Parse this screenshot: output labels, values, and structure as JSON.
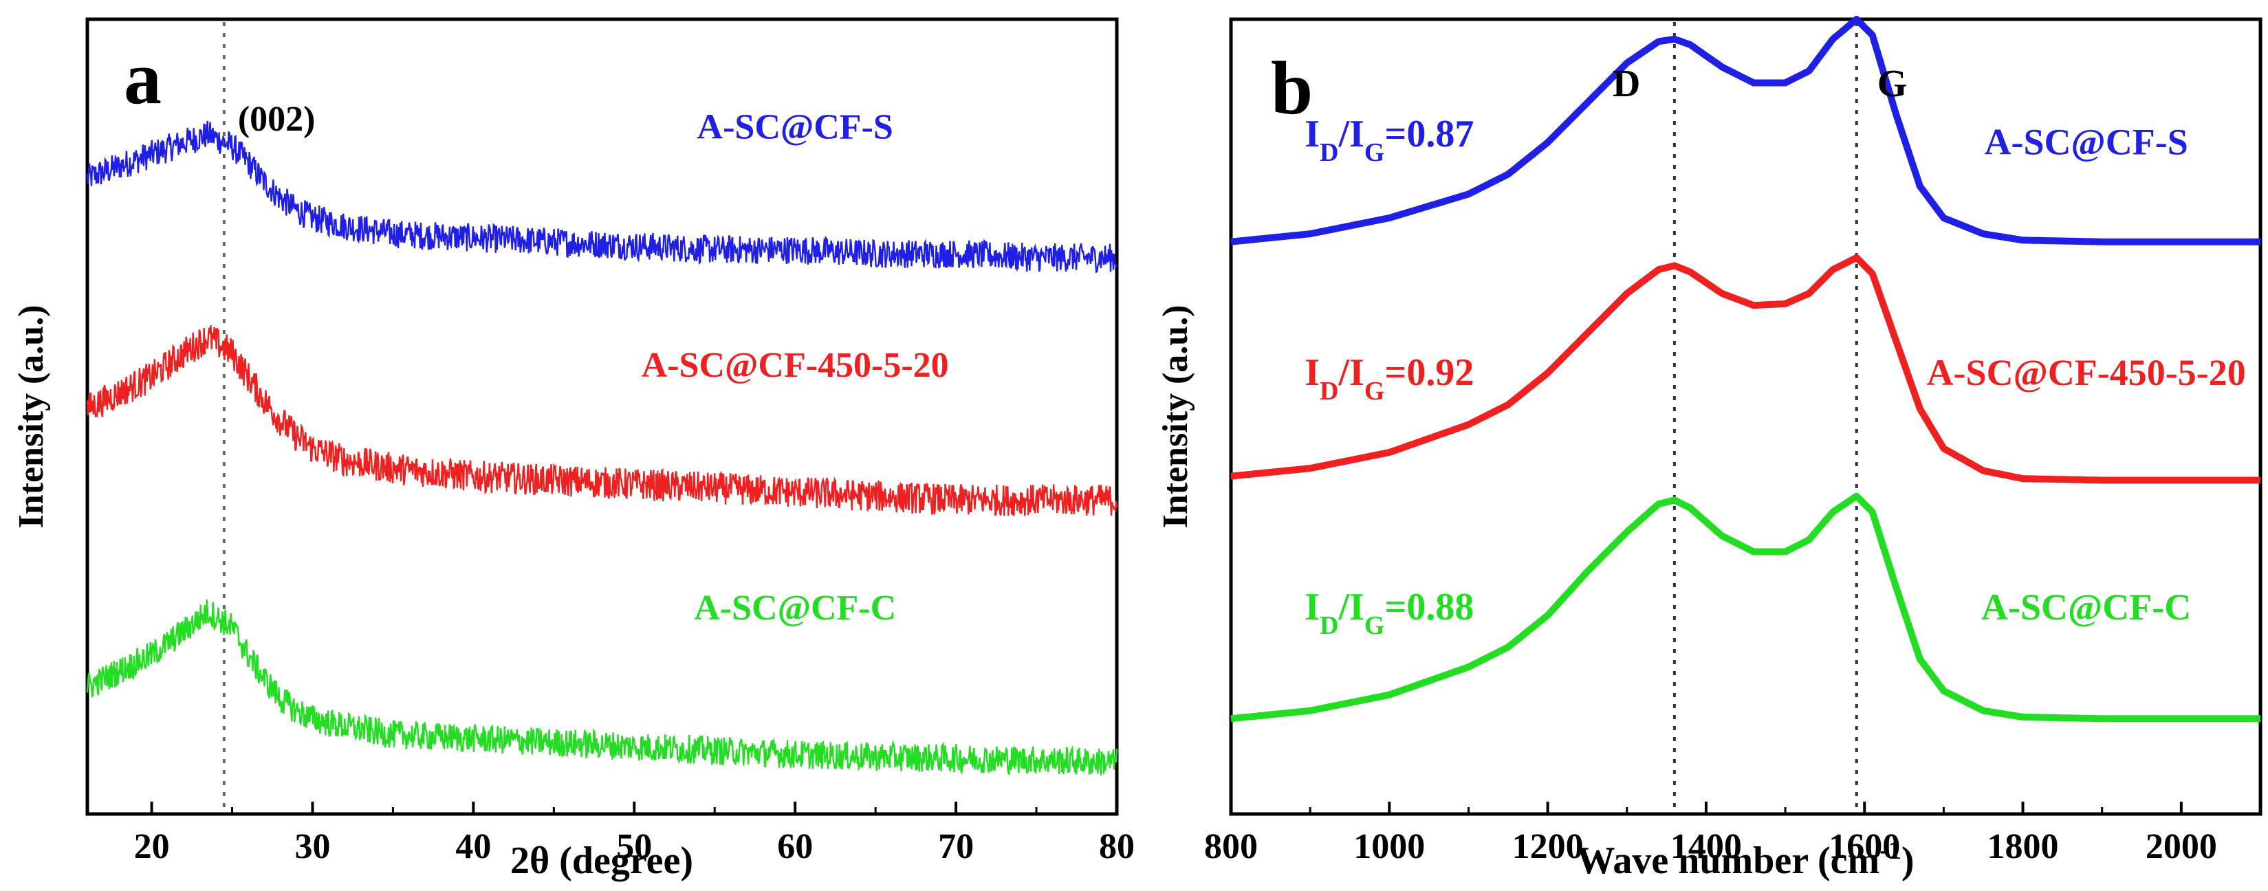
{
  "chart_data": [
    {
      "panel": "a",
      "type": "line",
      "title": "",
      "xlabel": "2θ (degree)",
      "ylabel": "Intensity (a.u.)",
      "xlim": [
        16,
        80
      ],
      "ylim": [
        0,
        10
      ],
      "xticks": [
        20,
        30,
        40,
        50,
        60,
        70,
        80
      ],
      "yticks_shown": false,
      "reference_line": {
        "x": 24.5,
        "label": "(002)",
        "style": "dotted"
      },
      "series": [
        {
          "name": "A-SC@CF-S",
          "color": "#1f1fe6",
          "noise": 0.18,
          "x": [
            16,
            18,
            20,
            22,
            23.5,
            25,
            26,
            27,
            28,
            29,
            30,
            32,
            35,
            40,
            45,
            50,
            55,
            60,
            65,
            70,
            75,
            80
          ],
          "y": [
            8.0,
            8.15,
            8.3,
            8.45,
            8.55,
            8.4,
            8.2,
            7.95,
            7.75,
            7.6,
            7.5,
            7.4,
            7.3,
            7.25,
            7.2,
            7.15,
            7.1,
            7.1,
            7.05,
            7.05,
            7.0,
            7.0
          ]
        },
        {
          "name": "A-SC@CF-450-5-20",
          "color": "#ef2020",
          "noise": 0.2,
          "x": [
            16,
            18,
            20,
            22,
            23.5,
            25,
            26,
            27,
            28,
            29,
            30,
            32,
            35,
            40,
            45,
            50,
            55,
            60,
            65,
            70,
            75,
            80
          ],
          "y": [
            5.1,
            5.3,
            5.5,
            5.8,
            6.0,
            5.8,
            5.5,
            5.2,
            4.95,
            4.75,
            4.6,
            4.45,
            4.35,
            4.25,
            4.2,
            4.15,
            4.1,
            4.05,
            4.0,
            3.95,
            3.95,
            3.95
          ]
        },
        {
          "name": "A-SC@CF-C",
          "color": "#22dd22",
          "noise": 0.18,
          "x": [
            16,
            18,
            20,
            22,
            23.5,
            25,
            26,
            27,
            28,
            29,
            30,
            32,
            35,
            40,
            45,
            50,
            55,
            60,
            65,
            70,
            75,
            80
          ],
          "y": [
            1.6,
            1.8,
            2.0,
            2.3,
            2.55,
            2.35,
            2.0,
            1.7,
            1.45,
            1.3,
            1.2,
            1.1,
            1.0,
            0.95,
            0.9,
            0.85,
            0.8,
            0.75,
            0.72,
            0.7,
            0.68,
            0.65
          ]
        }
      ],
      "labels": [
        {
          "text": "A-SC@CF-S",
          "color": "#1f1fe6",
          "x": 60,
          "y": 8.5
        },
        {
          "text": "A-SC@CF-450-5-20",
          "color": "#ef2020",
          "x": 60,
          "y": 5.5
        },
        {
          "text": "A-SC@CF-C",
          "color": "#22dd22",
          "x": 60,
          "y": 2.45
        }
      ]
    },
    {
      "panel": "b",
      "type": "line",
      "title": "",
      "xlabel_main": "Wave number (cm",
      "xlabel_sup": "-1",
      "xlabel_end": ")",
      "ylabel": "Intensity (a.u.)",
      "xlim": [
        800,
        2100
      ],
      "ylim": [
        0,
        10
      ],
      "xticks": [
        800,
        1000,
        1200,
        1400,
        1600,
        1800,
        2000
      ],
      "yticks_shown": false,
      "reference_lines": [
        {
          "x": 1360,
          "label": "D",
          "style": "dotted"
        },
        {
          "x": 1590,
          "label": "G",
          "style": "dotted"
        }
      ],
      "series": [
        {
          "name": "A-SC@CF-S",
          "color": "#1f1fe6",
          "baseline": 7.2,
          "x": [
            800,
            900,
            1000,
            1100,
            1150,
            1200,
            1250,
            1300,
            1340,
            1360,
            1380,
            1420,
            1460,
            1500,
            1530,
            1560,
            1590,
            1610,
            1640,
            1670,
            1700,
            1750,
            1800,
            1900,
            2000,
            2100
          ],
          "y": [
            7.2,
            7.3,
            7.5,
            7.8,
            8.05,
            8.45,
            8.95,
            9.45,
            9.72,
            9.75,
            9.68,
            9.4,
            9.2,
            9.2,
            9.35,
            9.75,
            10.0,
            9.8,
            8.8,
            7.9,
            7.5,
            7.3,
            7.22,
            7.2,
            7.2,
            7.2
          ]
        },
        {
          "name": "A-SC@CF-450-5-20",
          "color": "#ef2020",
          "baseline": 4.2,
          "x": [
            800,
            900,
            1000,
            1100,
            1150,
            1200,
            1250,
            1300,
            1340,
            1360,
            1380,
            1420,
            1460,
            1500,
            1530,
            1560,
            1590,
            1610,
            1640,
            1670,
            1700,
            1750,
            1800,
            1900,
            2000,
            2100
          ],
          "y": [
            4.25,
            4.35,
            4.55,
            4.9,
            5.15,
            5.55,
            6.05,
            6.55,
            6.85,
            6.9,
            6.82,
            6.55,
            6.4,
            6.42,
            6.55,
            6.85,
            7.0,
            6.8,
            5.95,
            5.1,
            4.6,
            4.32,
            4.22,
            4.2,
            4.2,
            4.2
          ]
        },
        {
          "name": "A-SC@CF-C",
          "color": "#22dd22",
          "baseline": 1.2,
          "x": [
            800,
            900,
            1000,
            1100,
            1150,
            1200,
            1250,
            1300,
            1340,
            1360,
            1380,
            1420,
            1460,
            1500,
            1530,
            1560,
            1590,
            1610,
            1640,
            1670,
            1700,
            1750,
            1800,
            1900,
            2000,
            2100
          ],
          "y": [
            1.2,
            1.3,
            1.5,
            1.85,
            2.1,
            2.5,
            3.05,
            3.55,
            3.9,
            3.95,
            3.85,
            3.5,
            3.3,
            3.3,
            3.45,
            3.8,
            4.0,
            3.8,
            2.85,
            1.95,
            1.55,
            1.3,
            1.22,
            1.2,
            1.2,
            1.2
          ]
        }
      ],
      "ratio_labels": [
        {
          "main": "I",
          "sub1": "D",
          "slash": "/I",
          "sub2": "G",
          "value": "=0.87",
          "color": "#1f1fe6",
          "x": 1000,
          "y": 8.4
        },
        {
          "main": "I",
          "sub1": "D",
          "slash": "/I",
          "sub2": "G",
          "value": "=0.92",
          "color": "#ef2020",
          "x": 1000,
          "y": 5.4
        },
        {
          "main": "I",
          "sub1": "D",
          "slash": "/I",
          "sub2": "G",
          "value": "=0.88",
          "color": "#22dd22",
          "x": 1000,
          "y": 2.45
        }
      ],
      "labels": [
        {
          "text": "A-SC@CF-S",
          "color": "#1f1fe6",
          "x": 1880,
          "y": 8.3
        },
        {
          "text": "A-SC@CF-450-5-20",
          "color": "#ef2020",
          "x": 1880,
          "y": 5.4
        },
        {
          "text": "A-SC@CF-C",
          "color": "#22dd22",
          "x": 1880,
          "y": 2.45
        }
      ]
    }
  ],
  "panel_labels": {
    "a": "a",
    "b": "b"
  }
}
